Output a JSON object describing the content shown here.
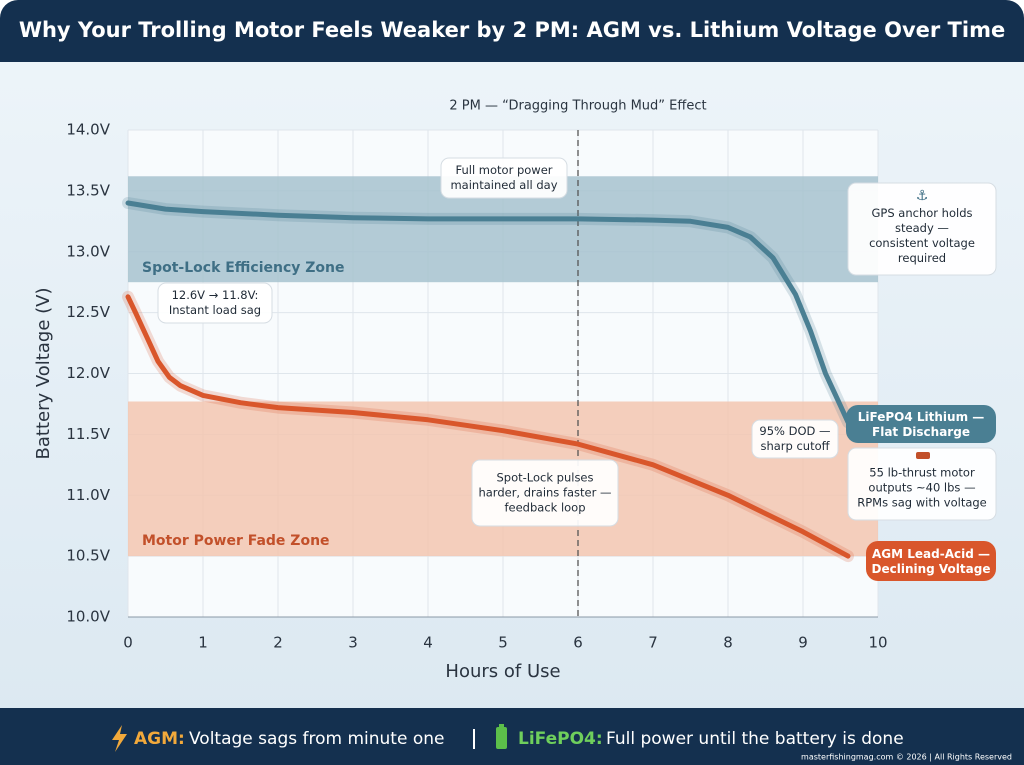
{
  "chart_data": {
    "type": "line",
    "title": "Why Your Trolling Motor Feels Weaker by 2 PM: AGM vs. Lithium Voltage Over Time",
    "x_label": "Hours of Use",
    "y_label": "Battery Voltage (V)",
    "xlim": [
      0,
      10
    ],
    "xticks": [
      0,
      1,
      2,
      3,
      4,
      5,
      6,
      7,
      8,
      9,
      10
    ],
    "ylim": [
      10,
      14
    ],
    "yticks": [
      {
        "value": 10,
        "label": "10.0V"
      },
      {
        "value": 10.5,
        "label": "10.5V"
      },
      {
        "value": 11,
        "label": "11.0V"
      },
      {
        "value": 11.5,
        "label": "11.5V"
      },
      {
        "value": 12,
        "label": "12.0V"
      },
      {
        "value": 12.5,
        "label": "12.5V"
      },
      {
        "value": 13,
        "label": "13.0V"
      },
      {
        "value": 13.5,
        "label": "13.5V"
      },
      {
        "value": 14,
        "label": "14.0V"
      }
    ],
    "grid": true,
    "series": [
      {
        "name": "LiFePO4 Lithium — Flat Discharge",
        "color": "#4a7f93",
        "x": [
          0,
          0.5,
          1,
          2,
          3,
          4,
          5,
          6,
          7,
          7.5,
          8,
          8.3,
          8.6,
          8.9,
          9.1,
          9.3,
          9.45,
          9.6
        ],
        "values": [
          13.4,
          13.35,
          13.33,
          13.3,
          13.28,
          13.27,
          13.27,
          13.27,
          13.26,
          13.25,
          13.2,
          13.12,
          12.95,
          12.65,
          12.35,
          12.0,
          11.8,
          11.6
        ]
      },
      {
        "name": "AGM Lead-Acid — Declining Voltage",
        "color": "#d9562b",
        "x": [
          0,
          0.1,
          0.25,
          0.4,
          0.55,
          0.7,
          1,
          1.5,
          2,
          3,
          4,
          5,
          6,
          7,
          8,
          9,
          9.6
        ],
        "values": [
          12.63,
          12.5,
          12.3,
          12.1,
          11.97,
          11.9,
          11.82,
          11.76,
          11.72,
          11.68,
          11.62,
          11.53,
          11.42,
          11.25,
          11.0,
          10.7,
          10.5
        ]
      }
    ],
    "bands": [
      {
        "label": "Spot-Lock Efficiency Zone",
        "range": [
          12.75,
          13.62
        ],
        "color": "#a7c2cf"
      },
      {
        "label": "Motor Power Fade Zone",
        "range": [
          10.5,
          11.77
        ],
        "color": "#f3c6b0"
      }
    ],
    "reference_line": {
      "x": 6,
      "label": "2 PM — “Dragging Through Mud” Effect"
    },
    "annotations": [
      {
        "lines": [
          "Full motor power",
          "maintained all day"
        ]
      },
      {
        "lines": [
          "GPS anchor holds",
          "steady —",
          "consistent voltage",
          "required"
        ]
      },
      {
        "lines": [
          "12.6V → 11.8V:",
          "Instant load sag"
        ]
      },
      {
        "lines": [
          "95% DOD —",
          "sharp cutoff"
        ]
      },
      {
        "lines": [
          "Spot-Lock pulses",
          "harder, drains faster —",
          "feedback loop"
        ]
      },
      {
        "lines": [
          "55 lb-thrust motor",
          "outputs ~40 lbs —",
          "RPMs sag with voltage"
        ]
      }
    ]
  },
  "footer": {
    "agm_label": "AGM:",
    "agm_text": "Voltage sags from minute one",
    "lithium_label": "LiFePO4:",
    "lithium_text": "Full power until the battery is done",
    "credit": "masterfishingmag.com © 2026 | All Rights Reserved"
  }
}
